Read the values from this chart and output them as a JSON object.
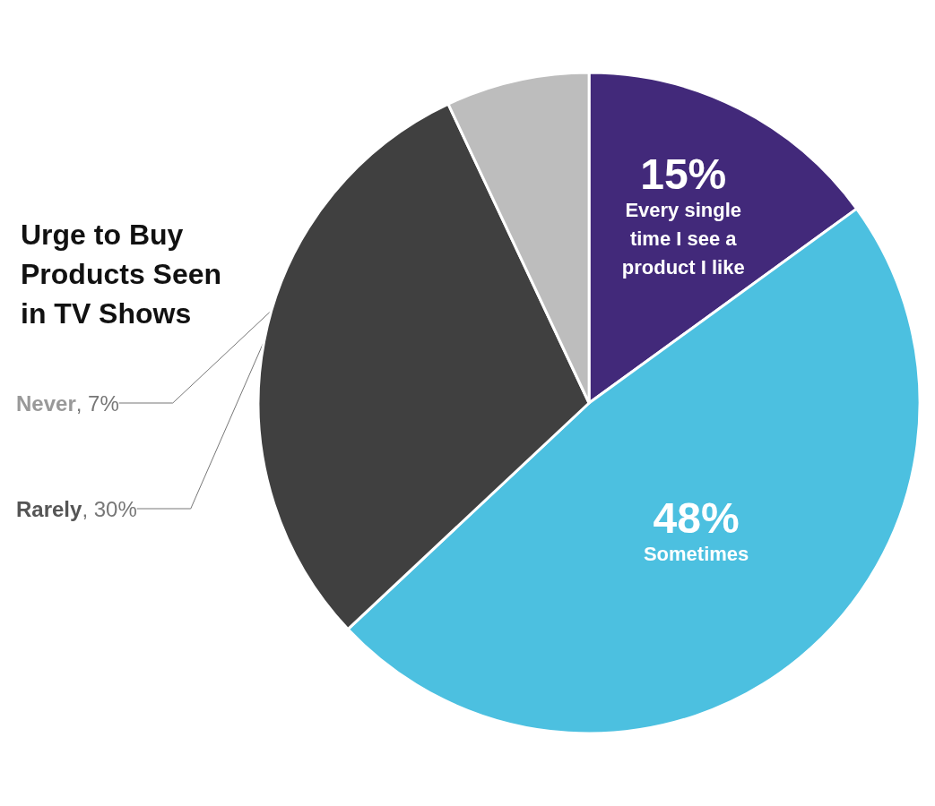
{
  "chart_data": {
    "type": "pie",
    "title": "Urge to Buy Products Seen in TV Shows",
    "categories": [
      "Every single time I see a product I like",
      "Sometimes",
      "Rarely",
      "Never"
    ],
    "values": [
      15,
      48,
      30,
      7
    ],
    "colors": [
      "#42297a",
      "#4cc0e0",
      "#404040",
      "#bdbdbd"
    ],
    "value_labels": [
      "15%",
      "48%",
      ", 30%",
      ", 7%"
    ],
    "legend": false
  }
}
